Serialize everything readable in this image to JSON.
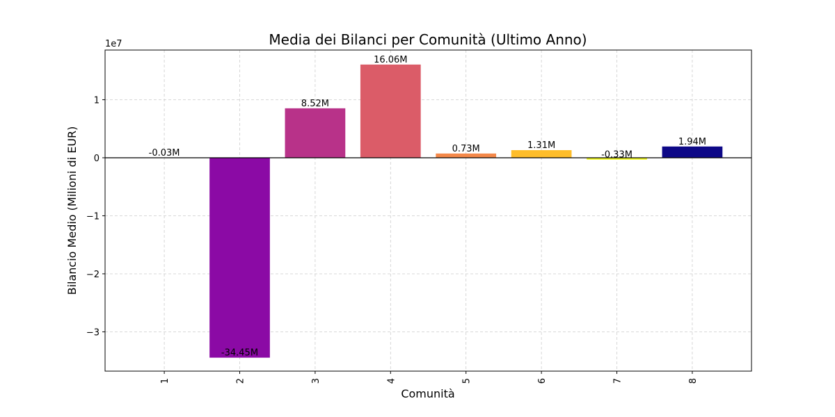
{
  "chart_data": {
    "type": "bar",
    "title": "Media dei Bilanci per Comunità (Ultimo Anno)",
    "x_label": "Comunità",
    "y_label": "Bilancio Medio (Milioni di EUR)",
    "y_offset_label": "1e7",
    "categories": [
      "1",
      "2",
      "3",
      "4",
      "5",
      "6",
      "7",
      "8"
    ],
    "values": [
      -30000,
      -34450000,
      8520000,
      16060000,
      730000,
      1310000,
      -330000,
      1940000
    ],
    "value_labels": [
      "-0.03M",
      "-34.45M",
      "8.52M",
      "16.06M",
      "0.73M",
      "1.31M",
      "-0.33M",
      "1.94M"
    ],
    "colors": [
      "#5302a3",
      "#8b0aa5",
      "#b83289",
      "#db5c68",
      "#f48849",
      "#febd2a",
      "#f0f921",
      "#0d0887"
    ],
    "ylim": [
      -36770000,
      18560000
    ],
    "yticks": [
      {
        "value": -30000000,
        "label": "−3"
      },
      {
        "value": -20000000,
        "label": "−2"
      },
      {
        "value": -10000000,
        "label": "−1"
      },
      0,
      {
        "value": 10000000,
        "label": "1"
      }
    ],
    "grid": true
  }
}
